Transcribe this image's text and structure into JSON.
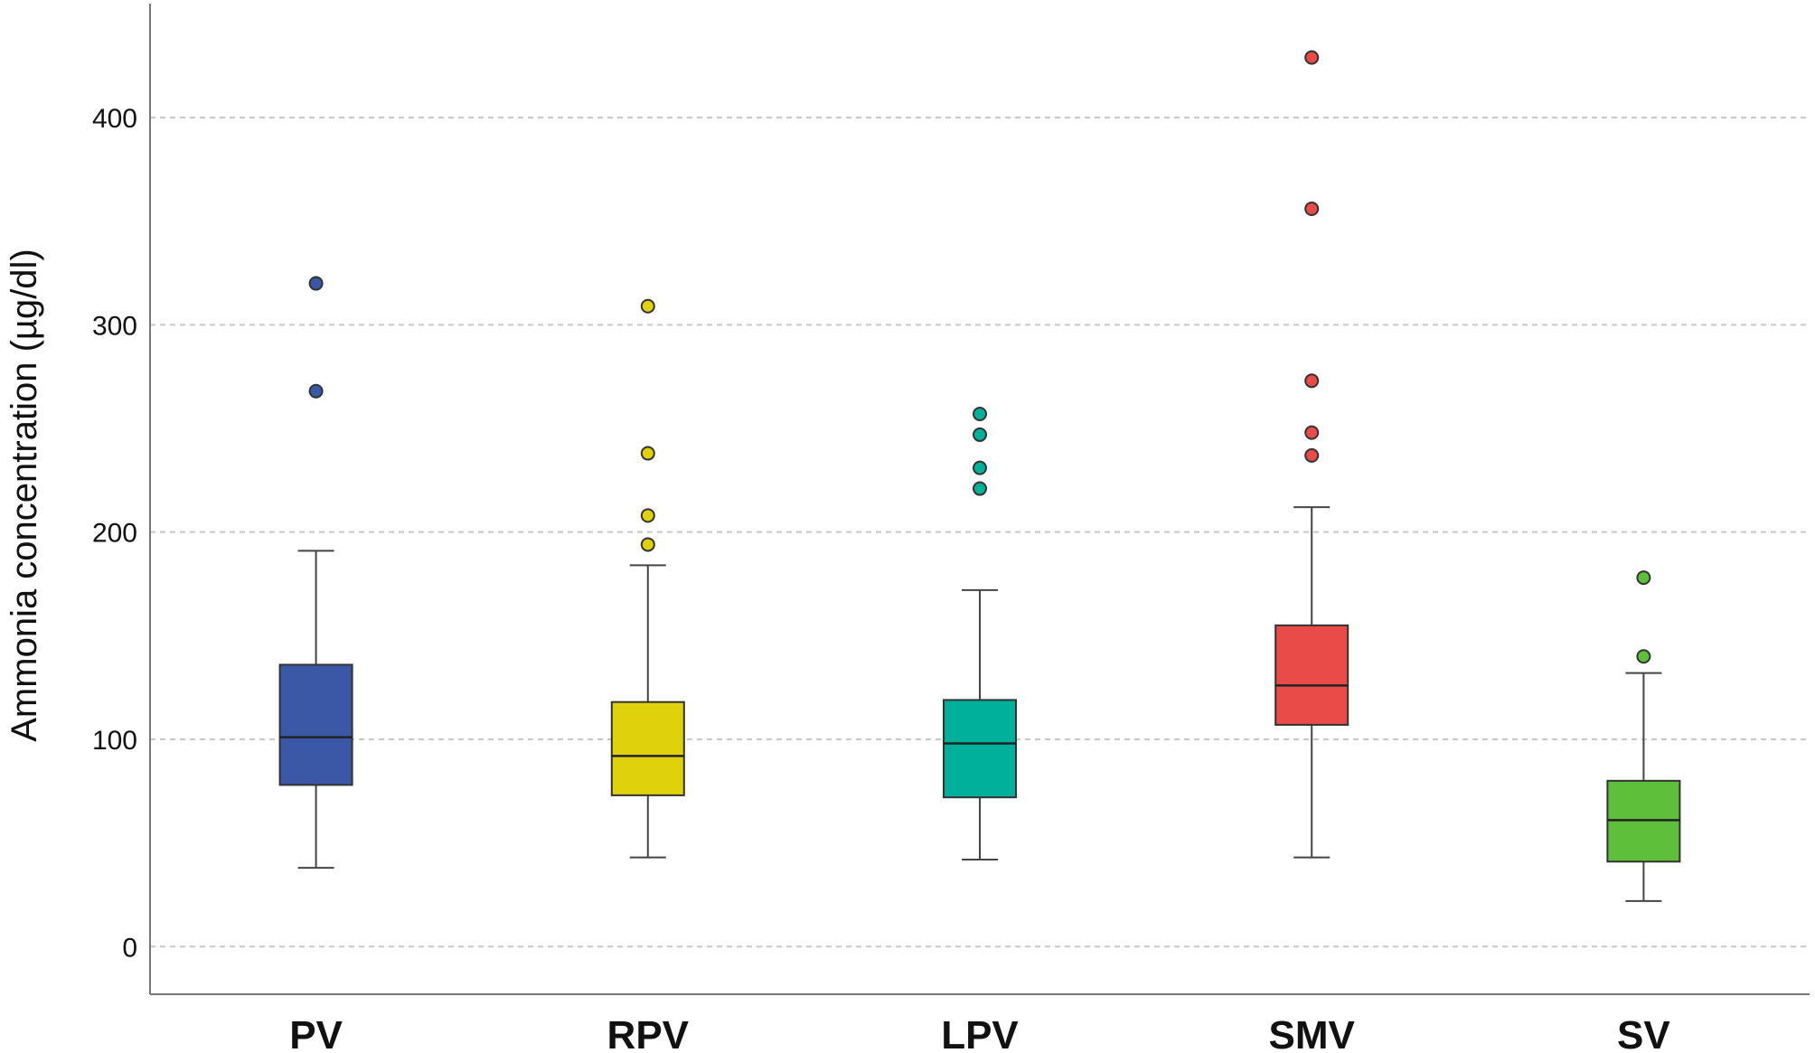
{
  "chart_data": {
    "type": "boxplot",
    "ylabel": "Ammonia concentration (µg/dl)",
    "xlabel": "",
    "ylim": [
      -23,
      455
    ],
    "yticks": [
      "0",
      "100",
      "200",
      "300",
      "400"
    ],
    "grid": "horizontal dashed",
    "categories": [
      "PV",
      "RPV",
      "LPV",
      "SMV",
      "SV"
    ],
    "series": [
      {
        "category": "PV",
        "color": "#3b58a7",
        "min": 38,
        "q1": 78,
        "median": 101,
        "q3": 136,
        "max": 191,
        "outliers": [
          268,
          320
        ]
      },
      {
        "category": "RPV",
        "color": "#dfd20c",
        "min": 43,
        "q1": 73,
        "median": 92,
        "q3": 118,
        "max": 184,
        "outliers": [
          194,
          208,
          238,
          309
        ]
      },
      {
        "category": "LPV",
        "color": "#00b09a",
        "min": 42,
        "q1": 72,
        "median": 98,
        "q3": 119,
        "max": 172,
        "outliers": [
          221,
          231,
          247,
          257
        ]
      },
      {
        "category": "SMV",
        "color": "#e84b48",
        "min": 43,
        "q1": 107,
        "median": 126,
        "q3": 155,
        "max": 212,
        "outliers": [
          237,
          248,
          273,
          356,
          429
        ]
      },
      {
        "category": "SV",
        "color": "#5ec03a",
        "min": 22,
        "q1": 41,
        "median": 61,
        "q3": 80,
        "max": 132,
        "outliers": [
          140,
          178
        ]
      }
    ]
  }
}
